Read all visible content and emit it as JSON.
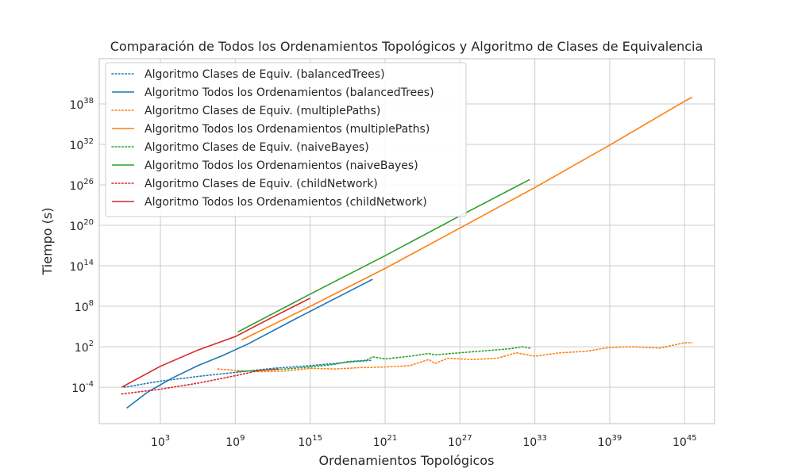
{
  "chart_data": {
    "type": "line",
    "title": "Comparación de Todos los Ordenamientos Topológicos y Algoritmo de Clases de Equivalencia",
    "xlabel": "Ordenamientos Topológicos",
    "ylabel": "Tiempo (s)",
    "xscale": "log",
    "yscale": "log",
    "xlim_exp": [
      -1.9,
      47.4
    ],
    "ylim_exp": [
      -9.4,
      44.7
    ],
    "x_tick_exps": [
      3,
      9,
      15,
      21,
      27,
      33,
      39,
      45
    ],
    "y_tick_exps": [
      -4,
      2,
      8,
      14,
      20,
      26,
      32,
      38
    ],
    "grid": true,
    "legend_position": "top-left",
    "series": [
      {
        "name": "Algoritmo Clases de Equiv. (balancedTrees)",
        "color": "#1f77b4",
        "style": "dotted",
        "points": [
          [
            0.1,
            -4
          ],
          [
            3,
            -3.1
          ],
          [
            6,
            -2.4
          ],
          [
            9,
            -1.8
          ],
          [
            12,
            -1.2
          ],
          [
            15,
            -0.8
          ],
          [
            18,
            -0.3
          ],
          [
            20,
            0
          ]
        ]
      },
      {
        "name": "Algoritmo Todos los Ordenamientos (balancedTrees)",
        "color": "#1f77b4",
        "style": "solid",
        "points": [
          [
            0.3,
            -7.1
          ],
          [
            2,
            -4.7
          ],
          [
            4,
            -2.6
          ],
          [
            6,
            -0.8
          ],
          [
            8,
            0.7
          ],
          [
            10,
            2.4
          ],
          [
            14,
            6.3
          ],
          [
            18,
            10.1
          ],
          [
            20,
            12
          ]
        ]
      },
      {
        "name": "Algoritmo Clases de Equiv. (multiplePaths)",
        "color": "#ff7f0e",
        "style": "dotted",
        "points": [
          [
            7.6,
            -1.3
          ],
          [
            9,
            -1.5
          ],
          [
            11,
            -1.7
          ],
          [
            13,
            -1.6
          ],
          [
            15,
            -1.2
          ],
          [
            17,
            -1.3
          ],
          [
            19,
            -1.1
          ],
          [
            21,
            -1
          ],
          [
            23,
            -0.8
          ],
          [
            24.5,
            0.1
          ],
          [
            25,
            -0.5
          ],
          [
            26,
            0.3
          ],
          [
            28,
            0.1
          ],
          [
            30,
            0.3
          ],
          [
            31.5,
            1.1
          ],
          [
            33,
            0.6
          ],
          [
            35,
            1.1
          ],
          [
            37,
            1.3
          ],
          [
            39,
            1.9
          ],
          [
            41,
            2
          ],
          [
            43,
            1.8
          ],
          [
            45,
            2.6
          ],
          [
            45.6,
            2.6
          ]
        ]
      },
      {
        "name": "Algoritmo Todos los Ordenamientos (multiplePaths)",
        "color": "#ff7f0e",
        "style": "solid",
        "points": [
          [
            9.5,
            3
          ],
          [
            15,
            8
          ],
          [
            21,
            13.6
          ],
          [
            27,
            19.6
          ],
          [
            33,
            25.6
          ],
          [
            39,
            31.9
          ],
          [
            45,
            38.4
          ],
          [
            45.6,
            39
          ]
        ]
      },
      {
        "name": "Algoritmo Clases de Equiv. (naiveBayes)",
        "color": "#2ca02c",
        "style": "dotted",
        "points": [
          [
            9.2,
            -1.7
          ],
          [
            11,
            -1.5
          ],
          [
            13,
            -1.3
          ],
          [
            15,
            -1
          ],
          [
            17,
            -0.6
          ],
          [
            18,
            -0.2
          ],
          [
            19.5,
            0
          ],
          [
            20,
            0.5
          ],
          [
            21,
            0.2
          ],
          [
            23,
            0.6
          ],
          [
            24.5,
            1
          ],
          [
            25,
            0.8
          ],
          [
            27,
            1.1
          ],
          [
            29,
            1.4
          ],
          [
            31,
            1.7
          ],
          [
            32,
            2
          ],
          [
            32.6,
            1.8
          ]
        ]
      },
      {
        "name": "Algoritmo Todos los Ordenamientos (naiveBayes)",
        "color": "#2ca02c",
        "style": "solid",
        "points": [
          [
            9.2,
            4.2
          ],
          [
            15,
            9.8
          ],
          [
            21,
            15.5
          ],
          [
            27,
            21.4
          ],
          [
            32.6,
            26.8
          ]
        ]
      },
      {
        "name": "Algoritmo Clases de Equiv. (childNetwork)",
        "color": "#d62728",
        "style": "dotted",
        "points": [
          [
            -0.1,
            -5
          ],
          [
            3,
            -4.3
          ],
          [
            6,
            -3.4
          ],
          [
            9,
            -2.3
          ],
          [
            11,
            -1.5
          ],
          [
            12.5,
            -1.3
          ]
        ]
      },
      {
        "name": "Algoritmo Todos los Ordenamientos (childNetwork)",
        "color": "#d62728",
        "style": "solid",
        "points": [
          [
            -0.1,
            -4
          ],
          [
            3,
            -0.9
          ],
          [
            6,
            1.5
          ],
          [
            9,
            3.5
          ],
          [
            12,
            6.4
          ],
          [
            15,
            9.2
          ]
        ]
      }
    ]
  }
}
